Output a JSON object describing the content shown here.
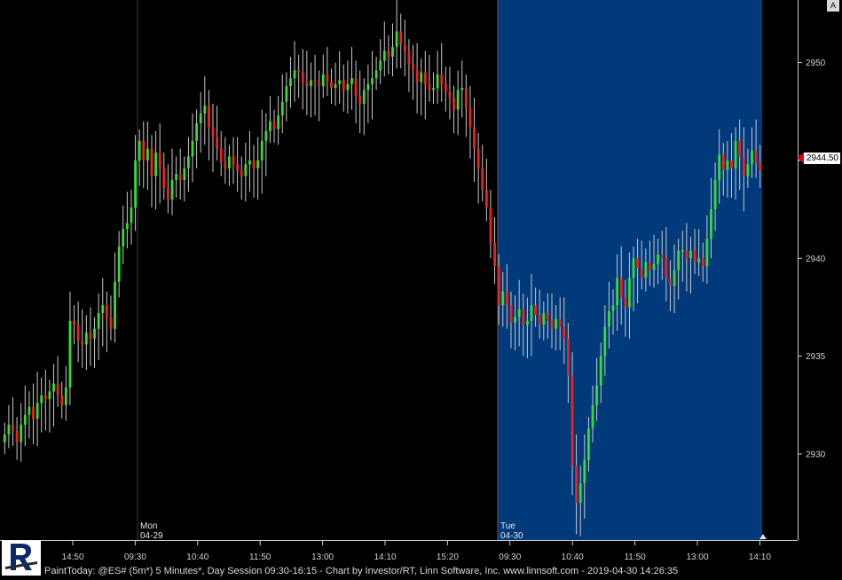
{
  "symbol_info": "PaintToday: @ES# (5m*) 5 Minutes*, Day Session 09:30-16:15 - Chart by Investor/RT, Linn Software, Inc. www.linnsoft.com - 2019-04-30 14:26:35",
  "corner_button": "A",
  "last_price": "2944.50",
  "colors": {
    "background": "#000000",
    "session_highlight": "#003a7a",
    "up_candle": "#33dd33",
    "down_candle": "#ee2222",
    "wick": "#c8c8c8",
    "axis_text": "#cfcfcf"
  },
  "chart_data": {
    "type": "candlestick",
    "title": "",
    "xlabel": "",
    "ylabel": "",
    "ylim": [
      2925.6,
      2953.2
    ],
    "y_ticks": [
      2930,
      2935,
      2940,
      2945,
      2950
    ],
    "x_tick_labels": [
      "14:50",
      "09:30",
      "10:40",
      "11:50",
      "13:00",
      "14:10",
      "15:20",
      "09:30",
      "10:40",
      "11:50",
      "13:00",
      "14:10"
    ],
    "session_labels": [
      {
        "day": "Mon",
        "date": "04-29"
      },
      {
        "day": "Tue",
        "date": "04-30"
      }
    ],
    "highlighted_session": "Tue 04-30",
    "grid": false,
    "closes": [
      2931.0,
      2931.5,
      2931.2,
      2930.6,
      2931.5,
      2932.0,
      2932.4,
      2931.8,
      2932.6,
      2933.0,
      2932.8,
      2933.2,
      2933.6,
      2933.0,
      2932.5,
      2933.4,
      2936.8,
      2936.6,
      2935.8,
      2935.6,
      2936.2,
      2935.9,
      2936.4,
      2937.2,
      2937.6,
      2937.0,
      2936.4,
      2938.8,
      2940.6,
      2941.5,
      2941.8,
      2942.6,
      2945.0,
      2946.0,
      2945.0,
      2945.6,
      2944.2,
      2945.4,
      2944.6,
      2943.6,
      2943.0,
      2944.0,
      2944.3,
      2944.0,
      2944.6,
      2945.2,
      2946.0,
      2946.9,
      2947.4,
      2947.8,
      2946.7,
      2946.2,
      2945.6,
      2944.9,
      2944.6,
      2945.2,
      2944.8,
      2944.5,
      2944.2,
      2944.8,
      2945.0,
      2944.6,
      2945.0,
      2946.0,
      2946.5,
      2947.0,
      2946.6,
      2947.3,
      2948.0,
      2948.8,
      2949.2,
      2949.6,
      2949.5,
      2949.0,
      2948.8,
      2949.1,
      2949.0,
      2948.8,
      2949.4,
      2949.0,
      2948.7,
      2948.9,
      2949.1,
      2948.6,
      2948.9,
      2949.2,
      2948.3,
      2947.9,
      2948.6,
      2948.9,
      2949.2,
      2949.6,
      2950.1,
      2950.6,
      2950.3,
      2950.8,
      2951.6,
      2950.9,
      2950.6,
      2949.9,
      2949.6,
      2949.0,
      2949.5,
      2948.9,
      2948.6,
      2948.7,
      2949.4,
      2948.9,
      2948.5,
      2948.2,
      2947.6,
      2948.6,
      2948.7,
      2947.7,
      2946.7,
      2945.6,
      2944.6,
      2943.5,
      2942.6,
      2940.8,
      2939.6,
      2937.6,
      2938.3,
      2937.6,
      2936.7,
      2937.0,
      2937.4,
      2936.6,
      2936.8,
      2937.6,
      2937.1,
      2936.6,
      2937.2,
      2936.8,
      2936.4,
      2936.9,
      2936.5,
      2935.9,
      2934.0,
      2929.4,
      2927.5,
      2928.5,
      2929.7,
      2931.3,
      2932.5,
      2933.5,
      2935.0,
      2936.5,
      2937.3,
      2937.6,
      2939.0,
      2938.0,
      2937.5,
      2939.0,
      2940.0,
      2939.5,
      2939.0,
      2939.8,
      2939.4,
      2939.7,
      2940.2,
      2940.0,
      2939.0,
      2938.6,
      2939.4,
      2940.4,
      2940.4,
      2940.0,
      2940.4,
      2939.8,
      2940.0,
      2939.6,
      2941.0,
      2942.5,
      2944.0,
      2945.3,
      2944.5,
      2945.0,
      2944.6,
      2946.0,
      2945.2,
      2944.2,
      2944.8,
      2945.5,
      2944.9,
      2944.5
    ]
  }
}
